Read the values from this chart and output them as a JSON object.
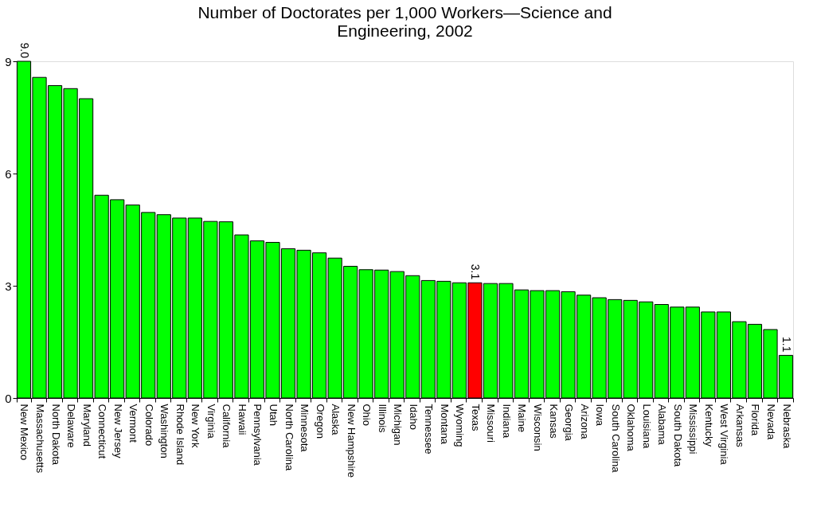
{
  "chart_data": {
    "type": "bar",
    "title": "Number of Doctorates per 1,000 Workers—Science and Engineering, 2002",
    "categories": [
      "New Mexico",
      "Massachusetts",
      "North Dakota",
      "Delaware",
      "Maryland",
      "Connecticut",
      "New Jersey",
      "Vermont",
      "Colorado",
      "Washington",
      "Rhode Island",
      "New York",
      "Virginia",
      "California",
      "Hawaii",
      "Pennsylvania",
      "Utah",
      "North Carolina",
      "Minnesota",
      "Oregon",
      "Alaska",
      "New Hampshire",
      "Ohio",
      "Illinois",
      "Michigan",
      "Idaho",
      "Tennessee",
      "Montana",
      "Wyoming",
      "Texas",
      "Missouri",
      "Indiana",
      "Maine",
      "Wisconsin",
      "Kansas",
      "Georgia",
      "Arizona",
      "Iowa",
      "South Carolina",
      "Oklahoma",
      "Louisiana",
      "Alabama",
      "South Dakota",
      "Mississippi",
      "Kentucky",
      "West Virginia",
      "Arkansas",
      "Florida",
      "Nevada",
      "Nebraska"
    ],
    "values": [
      9.0,
      8.57,
      8.35,
      8.27,
      8.0,
      5.42,
      5.3,
      5.16,
      4.96,
      4.9,
      4.81,
      4.81,
      4.72,
      4.71,
      4.36,
      4.2,
      4.16,
      3.99,
      3.95,
      3.88,
      3.74,
      3.52,
      3.43,
      3.42,
      3.38,
      3.27,
      3.14,
      3.12,
      3.08,
      3.08,
      3.06,
      3.06,
      2.89,
      2.87,
      2.87,
      2.84,
      2.75,
      2.68,
      2.63,
      2.61,
      2.57,
      2.5,
      2.43,
      2.43,
      2.3,
      2.3,
      2.04,
      1.97,
      1.83,
      1.14
    ],
    "colors": [
      "#00ff00",
      "#00ff00",
      "#00ff00",
      "#00ff00",
      "#00ff00",
      "#00ff00",
      "#00ff00",
      "#00ff00",
      "#00ff00",
      "#00ff00",
      "#00ff00",
      "#00ff00",
      "#00ff00",
      "#00ff00",
      "#00ff00",
      "#00ff00",
      "#00ff00",
      "#00ff00",
      "#00ff00",
      "#00ff00",
      "#00ff00",
      "#00ff00",
      "#00ff00",
      "#00ff00",
      "#00ff00",
      "#00ff00",
      "#00ff00",
      "#00ff00",
      "#00ff00",
      "#ff0000",
      "#00ff00",
      "#00ff00",
      "#00ff00",
      "#00ff00",
      "#00ff00",
      "#00ff00",
      "#00ff00",
      "#00ff00",
      "#00ff00",
      "#00ff00",
      "#00ff00",
      "#00ff00",
      "#00ff00",
      "#00ff00",
      "#00ff00",
      "#00ff00",
      "#00ff00",
      "#00ff00",
      "#00ff00",
      "#00ff00"
    ],
    "value_labels": [
      "9.0",
      null,
      null,
      null,
      null,
      null,
      null,
      null,
      null,
      null,
      null,
      null,
      null,
      null,
      null,
      null,
      null,
      null,
      null,
      null,
      null,
      null,
      null,
      null,
      null,
      null,
      null,
      null,
      null,
      "3.1",
      null,
      null,
      null,
      null,
      null,
      null,
      null,
      null,
      null,
      null,
      null,
      null,
      null,
      null,
      null,
      null,
      null,
      null,
      null,
      "1.1"
    ],
    "ylim": [
      0,
      9
    ],
    "yticks": [
      0,
      3,
      6,
      9
    ],
    "grid": false
  }
}
